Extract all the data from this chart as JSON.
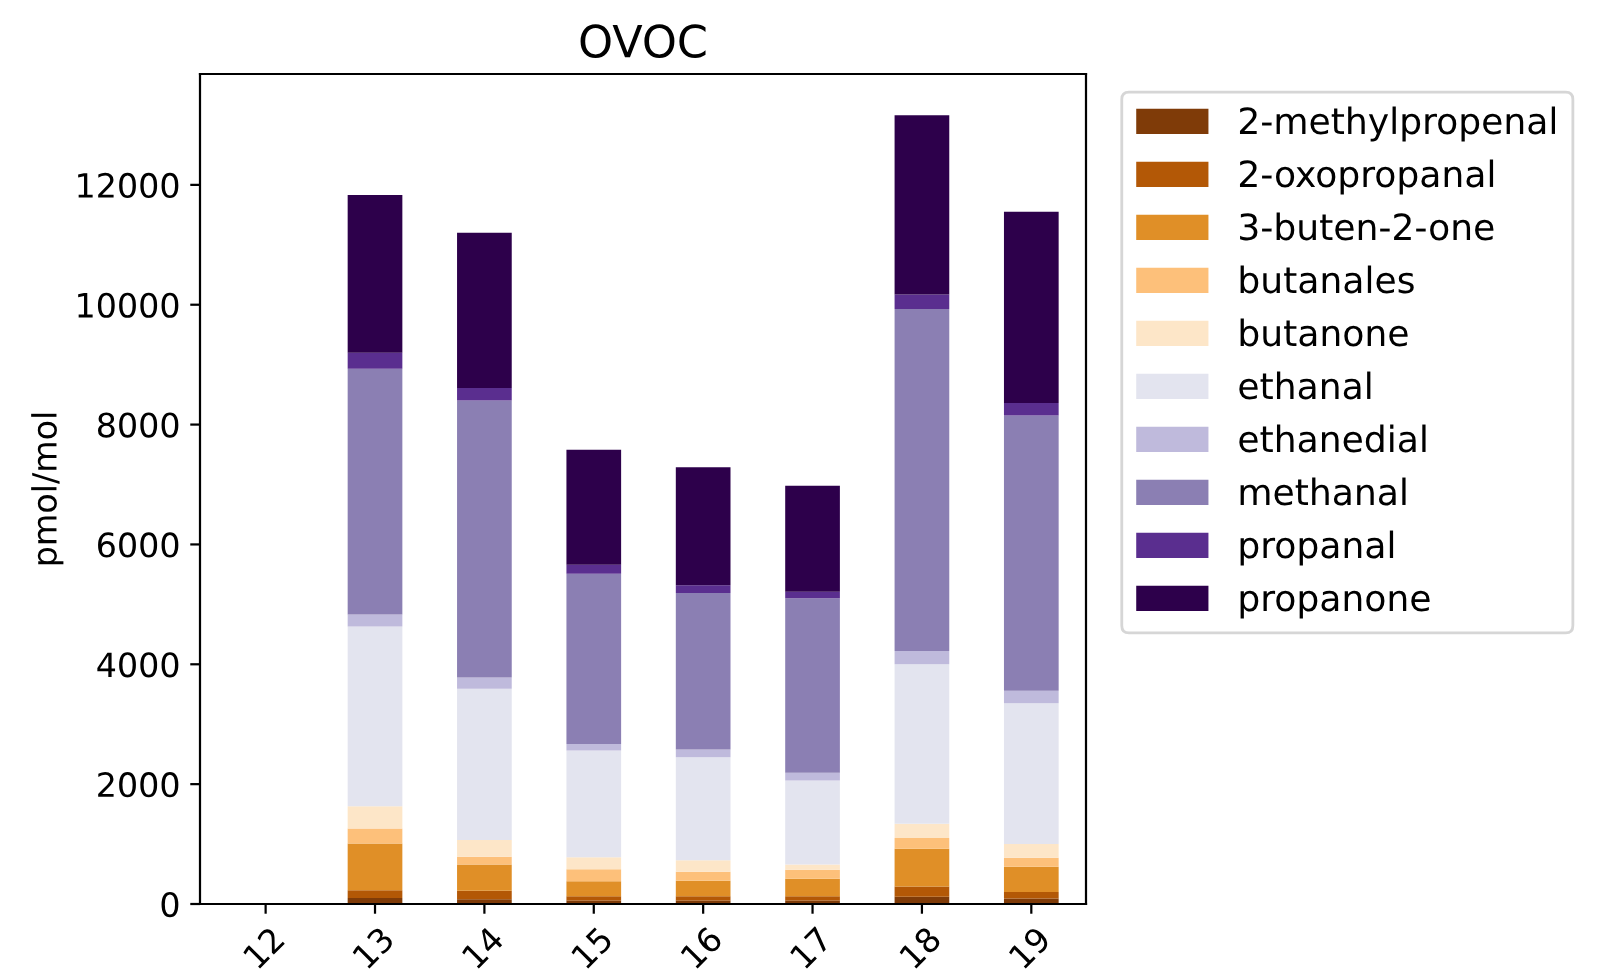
{
  "chart_data": {
    "type": "bar",
    "title": "OVOC",
    "ylabel": "pmol/mol",
    "stacked": true,
    "categories": [
      "12",
      "13",
      "14",
      "15",
      "16",
      "17",
      "18",
      "19"
    ],
    "series": [
      {
        "name": "2-methylpropenal",
        "color": "#7f3b08",
        "values": [
          0,
          100,
          80,
          60,
          60,
          60,
          120,
          90
        ]
      },
      {
        "name": "2-oxopropanal",
        "color": "#b35806",
        "values": [
          0,
          130,
          140,
          70,
          70,
          70,
          170,
          110
        ]
      },
      {
        "name": "3-buten-2-one",
        "color": "#e08f27",
        "values": [
          0,
          780,
          440,
          250,
          260,
          290,
          630,
          420
        ]
      },
      {
        "name": "butanales",
        "color": "#fdc07a",
        "values": [
          0,
          250,
          130,
          200,
          150,
          150,
          180,
          150
        ]
      },
      {
        "name": "butanone",
        "color": "#fde6c8",
        "values": [
          0,
          370,
          280,
          200,
          190,
          90,
          240,
          230
        ]
      },
      {
        "name": "ethanal",
        "color": "#e3e4ef",
        "values": [
          0,
          3000,
          2520,
          1780,
          1720,
          1400,
          2660,
          2350
        ]
      },
      {
        "name": "ethanedial",
        "color": "#bfbadc",
        "values": [
          0,
          200,
          190,
          110,
          130,
          130,
          220,
          210
        ]
      },
      {
        "name": "methanal",
        "color": "#8b7fb3",
        "values": [
          0,
          4100,
          4620,
          2840,
          2610,
          2910,
          5710,
          4590
        ]
      },
      {
        "name": "propanal",
        "color": "#5a2e8f",
        "values": [
          0,
          270,
          210,
          150,
          130,
          110,
          240,
          210
        ]
      },
      {
        "name": "propanone",
        "color": "#2d004b",
        "values": [
          0,
          2630,
          2590,
          1920,
          1970,
          1770,
          2990,
          3190
        ]
      }
    ],
    "ylim": [
      0,
      13850
    ],
    "yticks": [
      0,
      2000,
      4000,
      6000,
      8000,
      10000,
      12000
    ],
    "legend": "top right",
    "grid": false
  }
}
